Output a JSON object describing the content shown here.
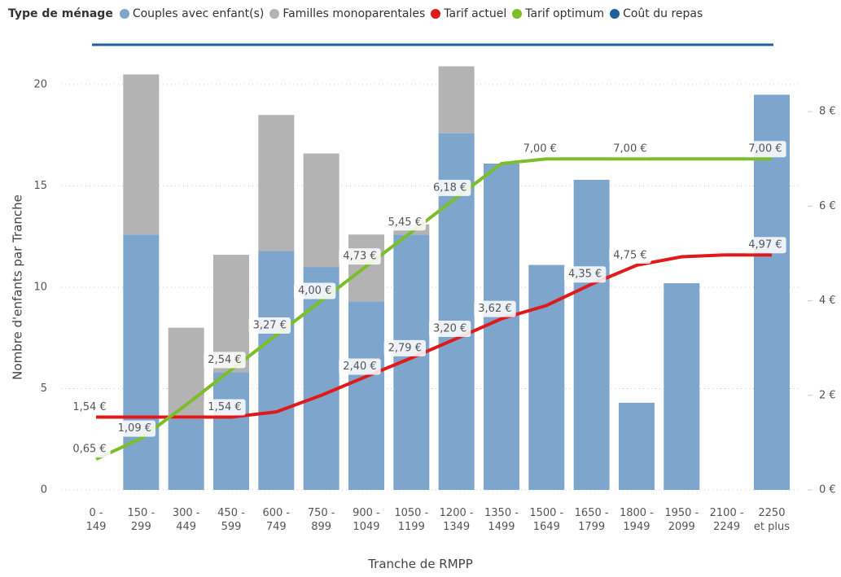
{
  "chart_data": {
    "type": "bar-line",
    "legend": "top-left",
    "legend_title": "Type de ménage",
    "y_label": "Nombre d'enfants par Tranche",
    "x_label": "Tranche de RMPP",
    "categories": [
      "0 - 149",
      "150 - 299",
      "300 - 449",
      "450 - 599",
      "600 - 749",
      "750 - 899",
      "900 - 1049",
      "1050 - 1199",
      "1200 - 1349",
      "1350 - 1499",
      "1500 - 1649",
      "1650 - 1799",
      "1800 - 1949",
      "1950 - 2099",
      "2100 - 2249",
      "2250 et plus"
    ],
    "ylim": [
      0,
      21
    ],
    "yticks": [
      0,
      5,
      10,
      15,
      20
    ],
    "y2lim": [
      0,
      9
    ],
    "y2ticks": [
      {
        "value": 0,
        "label": "0 €"
      },
      {
        "value": 2,
        "label": "2 €"
      },
      {
        "value": 4,
        "label": "4 €"
      },
      {
        "value": 6,
        "label": "6 €"
      },
      {
        "value": 8,
        "label": "8 €"
      }
    ],
    "grid": true,
    "series": [
      {
        "name": "Couples avec enfant(s)",
        "kind": "bar",
        "color": "#7ea6cc",
        "values": [
          null,
          12.6,
          3.5,
          5.8,
          11.8,
          11.0,
          9.3,
          12.6,
          17.6,
          16.1,
          11.1,
          15.3,
          4.3,
          10.2,
          null,
          19.5
        ]
      },
      {
        "name": "Familles monoparentales",
        "kind": "bar",
        "color": "#b3b3b3",
        "values": [
          null,
          7.9,
          4.5,
          5.8,
          6.7,
          5.6,
          3.3,
          0.5,
          3.3,
          null,
          null,
          null,
          null,
          null,
          null,
          null
        ]
      },
      {
        "name": "Tarif actuel",
        "kind": "line",
        "axis": "y2",
        "color": "#e01a1a",
        "values": [
          1.54,
          1.54,
          1.54,
          1.54,
          1.65,
          2.0,
          2.4,
          2.79,
          3.2,
          3.62,
          3.9,
          4.35,
          4.75,
          4.93,
          4.97,
          4.97
        ],
        "value_labels": [
          "1,54 €",
          null,
          null,
          "1,54 €",
          null,
          null,
          "2,40 €",
          "2,79 €",
          "3,20 €",
          "3,62 €",
          null,
          "4,35 €",
          "4,75 €",
          null,
          null,
          "4,97 €"
        ]
      },
      {
        "name": "Tarif optimum",
        "kind": "line",
        "axis": "y2",
        "color": "#7cbd2a",
        "values": [
          0.65,
          1.09,
          1.8,
          2.54,
          3.27,
          4.0,
          4.73,
          5.45,
          6.18,
          6.9,
          7.0,
          7.0,
          7.0,
          7.0,
          7.0,
          7.0
        ],
        "value_labels": [
          "0,65 €",
          "1,09 €",
          null,
          "2,54 €",
          "3,27 €",
          "4,00 €",
          "4,73 €",
          "5,45 €",
          "6,18 €",
          null,
          "7,00 €",
          null,
          "7,00 €",
          null,
          null,
          "7,00 €"
        ]
      },
      {
        "name": "Coût du repas",
        "kind": "line",
        "axis": "y2",
        "color": "#1f5f9f",
        "values": [
          null,
          null,
          null,
          null,
          null,
          null,
          null,
          null,
          null,
          null,
          null,
          null,
          null,
          null,
          null,
          null
        ]
      }
    ]
  }
}
